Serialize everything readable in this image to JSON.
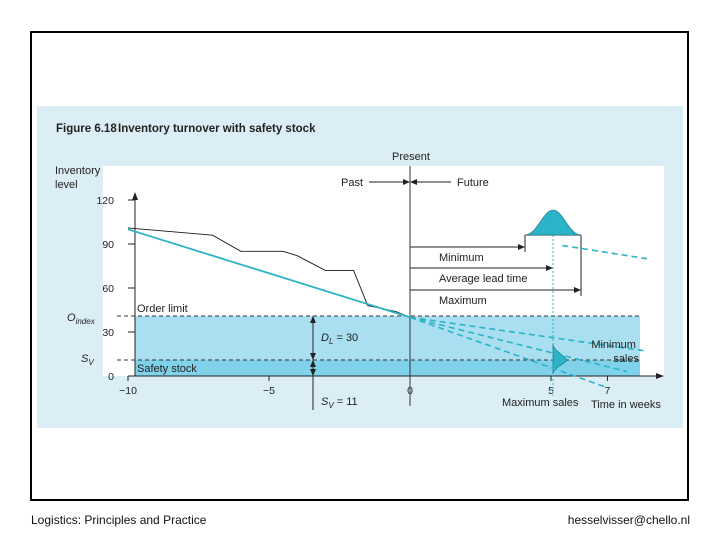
{
  "footer": {
    "left": "Logistics: Principles and Practice",
    "right": "hesselvisser@chello.nl"
  },
  "chart_data": {
    "type": "line",
    "figure_number": "Figure 6.18",
    "title": "Inventory turnover with safety stock",
    "ylabel": "Inventory level",
    "xlabel": "Time in weeks",
    "x_ticks": [
      "−10",
      "−5",
      "0",
      "5",
      "7"
    ],
    "y_ticks": [
      "120",
      "90",
      "60",
      "30",
      "0"
    ],
    "xlim": [
      -10,
      8
    ],
    "ylim": [
      0,
      120
    ],
    "reference_levels": {
      "order_limit": {
        "name": "Order limit",
        "symbol": "O",
        "subscript": "index",
        "value": 40
      },
      "safety_stock": {
        "name": "Safety stock",
        "symbol": "S",
        "subscript": "V",
        "value": 11
      }
    },
    "annotations": {
      "present": "Present",
      "past": "Past",
      "future": "Future",
      "lead_time_minimum": "Minimum",
      "lead_time_average": "Average lead time",
      "lead_time_maximum": "Maximum",
      "minimum_sales_1": "Minimum",
      "minimum_sales_2": "sales",
      "maximum_sales": "Maximum sales",
      "dl_symbol": "D",
      "dl_subscript": "L",
      "dl_value": " = 30",
      "sv_symbol": "S",
      "sv_subscript": "V",
      "sv_value": " = 11"
    },
    "series": [
      {
        "name": "Actual inventory",
        "color": "#1a1a1a",
        "x": [
          -10,
          -7,
          -6,
          -4.5,
          -4,
          -3,
          -2.8,
          -2,
          -1.5,
          -0.5,
          0
        ],
        "y": [
          101,
          96,
          85,
          85,
          82,
          72,
          72,
          72,
          48,
          44,
          40
        ]
      },
      {
        "name": "Trend line",
        "color": "#2bb3c8",
        "x": [
          -10,
          0
        ],
        "y": [
          100,
          40
        ]
      },
      {
        "name": "Forecast (maximum sales)",
        "color": "#2bb3c8",
        "style": "dashed",
        "x": [
          0,
          7
        ],
        "y": [
          40,
          -8
        ]
      },
      {
        "name": "Forecast (average sales)",
        "color": "#2bb3c8",
        "style": "dashed",
        "x": [
          0,
          7.7
        ],
        "y": [
          40,
          3
        ]
      },
      {
        "name": "Forecast (minimum sales)",
        "color": "#2bb3c8",
        "style": "dashed",
        "x": [
          0,
          8.4
        ],
        "y": [
          40,
          17
        ]
      },
      {
        "name": "Upper projection",
        "color": "#2bb3c8",
        "style": "dashed",
        "x": [
          5.4,
          8.4
        ],
        "y": [
          89,
          80
        ]
      }
    ],
    "colors": {
      "panel": "#dbeef5",
      "plot": "#ffffff",
      "band": "#a9dff0",
      "band_dark": "#7fd2ea",
      "accent": "#2bb3c8"
    }
  }
}
